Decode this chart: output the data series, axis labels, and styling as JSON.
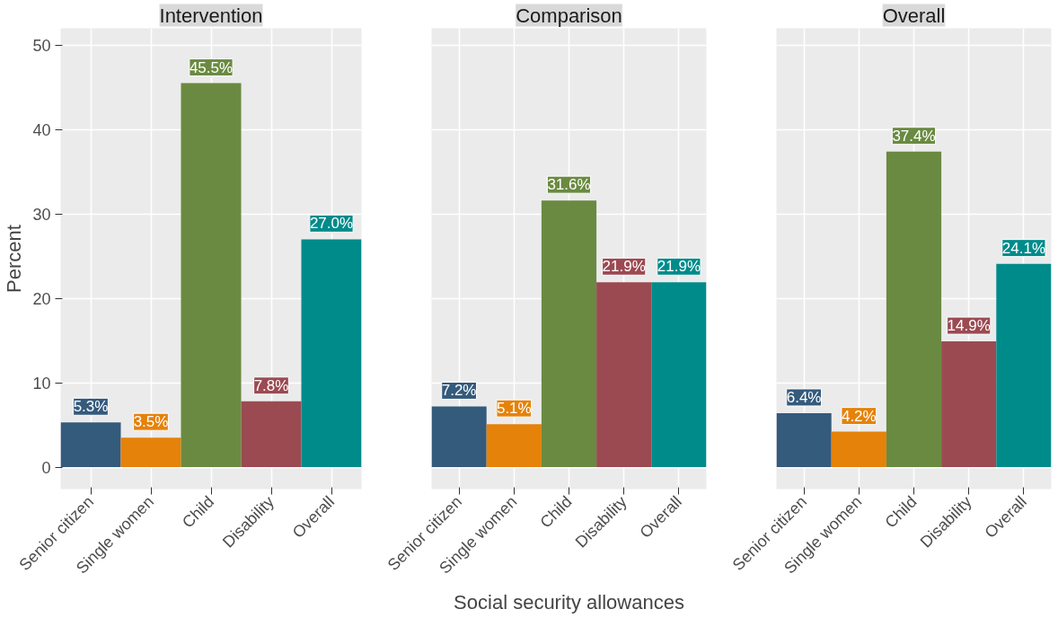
{
  "chart_data": [
    {
      "type": "bar",
      "title": "Intervention",
      "ylabel": "Percent",
      "categories": [
        "Senior citizen",
        "Single women",
        "Child",
        "Disability",
        "Overall"
      ],
      "values": [
        5.3,
        3.5,
        45.5,
        7.8,
        27.0
      ],
      "colors": [
        "#345a7c",
        "#e5820a",
        "#6a8a41",
        "#9b4a52",
        "#008b8b"
      ],
      "value_labels": [
        "5.3%",
        "3.5%",
        "45.5%",
        "7.8%",
        "27.0%"
      ],
      "ylim": [
        -2.6,
        52
      ],
      "yticks": [
        0,
        10,
        20,
        30,
        40,
        50
      ],
      "grid": true
    },
    {
      "type": "bar",
      "title": "Comparison",
      "xlabel": "Social security allowances",
      "categories": [
        "Senior citizen",
        "Single women",
        "Child",
        "Disability",
        "Overall"
      ],
      "values": [
        7.2,
        5.1,
        31.6,
        21.9,
        21.9
      ],
      "colors": [
        "#345a7c",
        "#e5820a",
        "#6a8a41",
        "#9b4a52",
        "#008b8b"
      ],
      "value_labels": [
        "7.2%",
        "5.1%",
        "31.6%",
        "21.9%",
        "21.9%"
      ],
      "ylim": [
        -2.6,
        52
      ],
      "yticks": [
        0,
        10,
        20,
        30,
        40,
        50
      ],
      "grid": true,
      "tick_labels": "x"
    },
    {
      "type": "bar",
      "title": "Overall",
      "categories": [
        "Senior citizen",
        "Single women",
        "Child",
        "Disability",
        "Overall"
      ],
      "values": [
        6.4,
        4.2,
        37.4,
        14.9,
        24.1
      ],
      "colors": [
        "#345a7c",
        "#e5820a",
        "#6a8a41",
        "#9b4a52",
        "#008b8b"
      ],
      "value_labels": [
        "6.4%",
        "4.2%",
        "37.4%",
        "14.9%",
        "24.1%"
      ],
      "ylim": [
        -2.6,
        52
      ],
      "yticks": [
        0,
        10,
        20,
        30,
        40,
        50
      ],
      "grid": true,
      "tick_labels": "x"
    }
  ]
}
